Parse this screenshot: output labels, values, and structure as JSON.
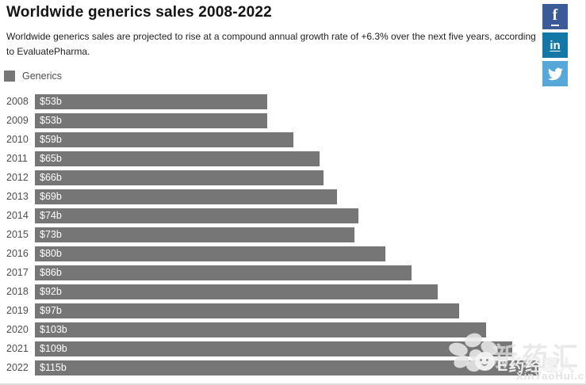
{
  "page": {
    "title": "Worldwide generics sales 2008-2022",
    "subtitle": "Worldwide generics sales are projected to rise at a compound annual growth rate of +6.3% over the next five years, according to EvaluatePharma.",
    "legend": {
      "label": "Generics",
      "swatch_color": "#767676"
    }
  },
  "share_buttons": [
    {
      "name": "facebook",
      "glyph": "f",
      "color": "#3b5a98"
    },
    {
      "name": "linkedin",
      "glyph": "in",
      "color": "#1478a6"
    },
    {
      "name": "twitter",
      "glyph": "twitter-bird",
      "color": "#56a8d9"
    }
  ],
  "chart_data": {
    "type": "bar",
    "orientation": "horizontal",
    "title": "Worldwide generics sales 2008-2022",
    "series_name": "Generics",
    "unit": "USD billion",
    "categories": [
      "2008",
      "2009",
      "2010",
      "2011",
      "2012",
      "2013",
      "2014",
      "2015",
      "2016",
      "2017",
      "2018",
      "2019",
      "2020",
      "2021",
      "2022"
    ],
    "values": [
      53,
      53,
      59,
      65,
      66,
      69,
      74,
      73,
      80,
      86,
      92,
      97,
      103,
      109,
      115
    ],
    "value_labels": [
      "$53b",
      "$53b",
      "$59b",
      "$65b",
      "$66b",
      "$69b",
      "$74b",
      "$73b",
      "$80b",
      "$86b",
      "$92b",
      "$97b",
      "$103b",
      "$109b",
      "$115b"
    ],
    "xlim": [
      0,
      126
    ],
    "grid": false,
    "legend_position": "top-left",
    "bar_color": "#767676"
  },
  "watermark": {
    "backdrop_text": "新药汇",
    "brand_text": "E药经理人",
    "site_text": "XinYaoHui.com"
  }
}
